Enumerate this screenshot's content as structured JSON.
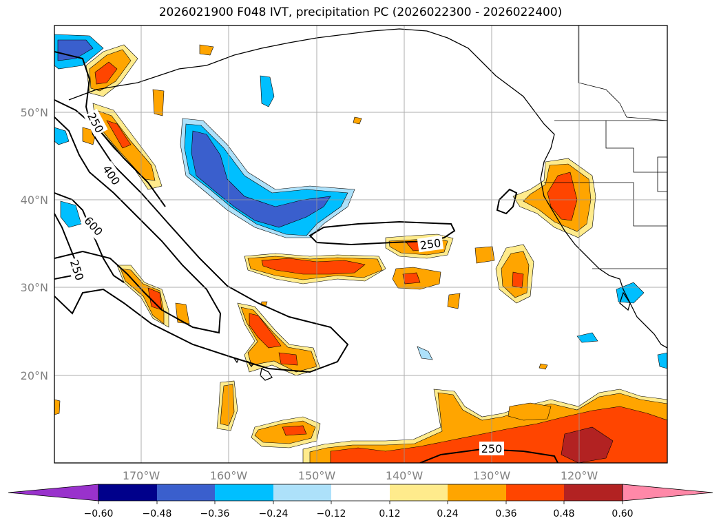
{
  "title": "2026021900 F048 IVT, precipitation PC (2026022300 - 2026022400)",
  "map": {
    "lat_labels": [
      "50°N",
      "40°N",
      "30°N",
      "20°N"
    ],
    "lon_labels": [
      "170°W",
      "160°W",
      "150°W",
      "140°W",
      "130°W",
      "120°W"
    ],
    "ivt_contour_labels": [
      "250",
      "400",
      "600",
      "250",
      "250",
      "250"
    ]
  },
  "colorbar": {
    "ticks": [
      "−0.60",
      "−0.48",
      "−0.36",
      "−0.24",
      "−0.12",
      "0.12",
      "0.24",
      "0.36",
      "0.48",
      "0.60"
    ],
    "colors": [
      "#9932CC",
      "#00008B",
      "#3A5FCD",
      "#00BFFF",
      "#ADE1FA",
      "#FFFFFF",
      "#FFEB8C",
      "#FFA500",
      "#FF4500",
      "#B22222",
      "#FF88A8"
    ]
  }
}
